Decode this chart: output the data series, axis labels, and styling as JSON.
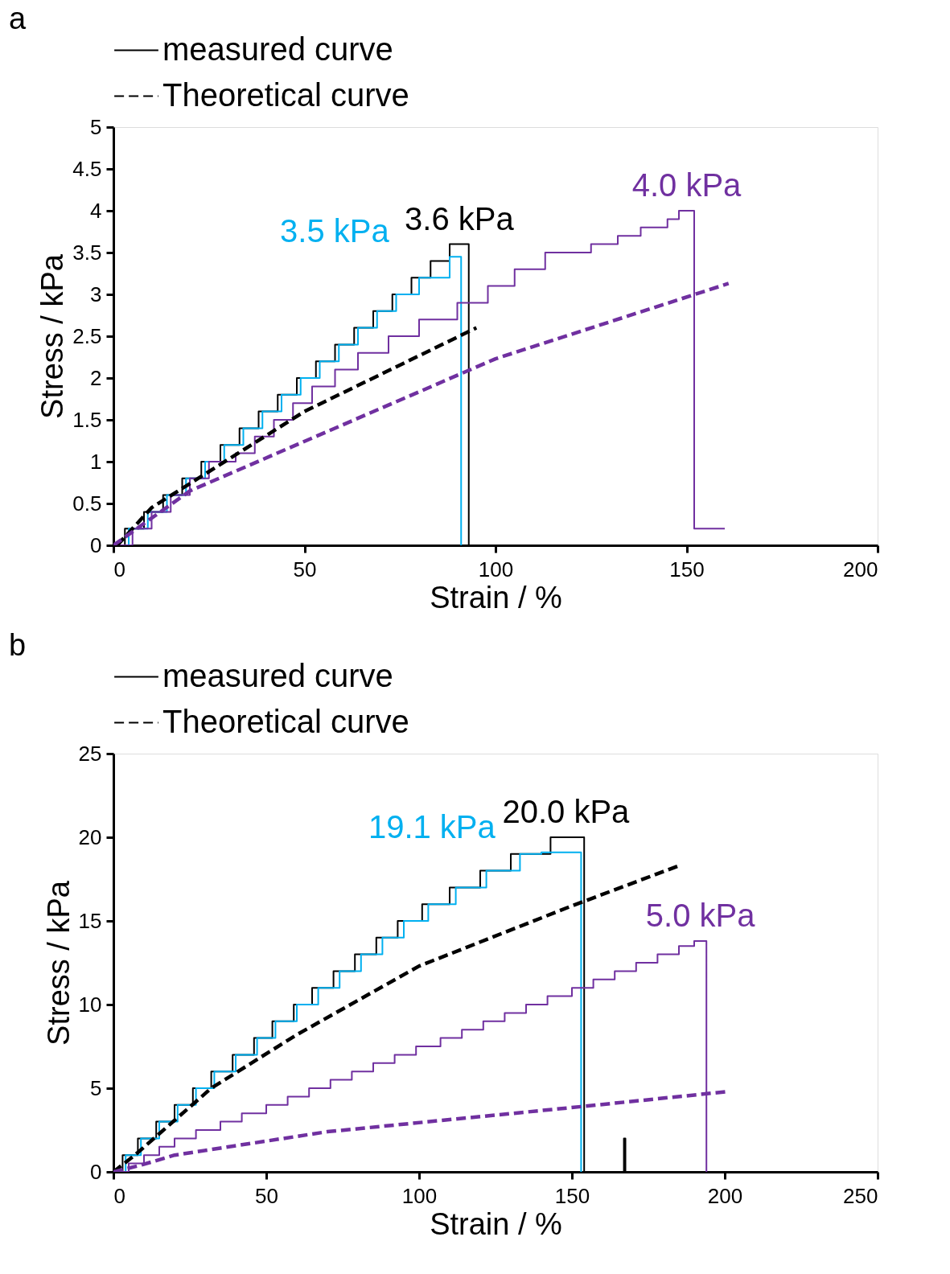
{
  "chart_data": [
    {
      "type": "line",
      "title": "a",
      "xlabel": "Strain / %",
      "ylabel": "Stress / kPa",
      "xlim": [
        0,
        200
      ],
      "xticks": [
        0,
        50,
        100,
        150,
        200
      ],
      "ylim": [
        0,
        5
      ],
      "yticks": [
        0,
        0.5,
        1,
        1.5,
        2,
        2.5,
        3,
        3.5,
        4,
        4.5,
        5
      ],
      "grid": false,
      "legend": "top",
      "marker": "none",
      "series": [
        {
          "name": "measured curve",
          "type": "step",
          "line_style": "solid",
          "color": "#000000",
          "x": [
            0,
            3,
            8,
            13,
            18,
            23,
            28,
            33,
            38,
            43,
            48,
            53,
            58,
            63,
            68,
            73,
            78,
            83,
            88,
            93
          ],
          "values": [
            0,
            0.2,
            0.4,
            0.6,
            0.8,
            1.0,
            1.2,
            1.4,
            1.6,
            1.8,
            2.0,
            2.2,
            2.4,
            2.6,
            2.8,
            3.0,
            3.2,
            3.4,
            3.6,
            0
          ]
        },
        {
          "type": "step",
          "line_style": "solid",
          "color": "#00b0f0",
          "x": [
            0,
            4,
            9,
            14,
            19,
            24,
            29,
            34,
            39,
            44,
            49,
            54,
            59,
            64,
            69,
            74,
            80,
            88,
            91
          ],
          "values": [
            0,
            0.2,
            0.4,
            0.6,
            0.8,
            1.0,
            1.2,
            1.4,
            1.6,
            1.8,
            2.0,
            2.2,
            2.4,
            2.6,
            2.8,
            3.0,
            3.2,
            3.45,
            0
          ]
        },
        {
          "type": "step",
          "line_style": "solid",
          "color": "#7030a0",
          "x": [
            0,
            5,
            10,
            15,
            20,
            25,
            32,
            37,
            42,
            47,
            52,
            58,
            64,
            72,
            80,
            90,
            98,
            105,
            113,
            125,
            132,
            138,
            145,
            148,
            152,
            160
          ],
          "values": [
            0,
            0.2,
            0.4,
            0.6,
            0.8,
            1.0,
            1.1,
            1.3,
            1.5,
            1.7,
            1.9,
            2.1,
            2.3,
            2.5,
            2.7,
            2.9,
            3.1,
            3.3,
            3.5,
            3.6,
            3.7,
            3.8,
            3.9,
            4.0,
            0.2,
            0.2
          ]
        },
        {
          "name": "Theoretical curve",
          "line_style": "dashed",
          "color": "#000000",
          "x": [
            1,
            10,
            50,
            95
          ],
          "values": [
            0,
            0.45,
            1.6,
            2.6
          ]
        },
        {
          "line_style": "dashed",
          "color": "#7030a0",
          "x": [
            0,
            20,
            100,
            161
          ],
          "values": [
            0,
            0.65,
            2.23,
            3.13
          ]
        }
      ],
      "annotations": [
        {
          "text": "3.6 kPa",
          "x": 90.5,
          "y": 3.6
        },
        {
          "text": "3.5 kPa",
          "x": 89,
          "y": 3.45
        },
        {
          "text": "4.0 kPa",
          "x": 150,
          "y": 4.0
        }
      ]
    },
    {
      "type": "line",
      "title": "b",
      "xlabel": "Strain / %",
      "ylabel": "Stress / kPa",
      "xlim": [
        0,
        250
      ],
      "xticks": [
        0,
        50,
        100,
        150,
        200,
        250
      ],
      "ylim": [
        0,
        25
      ],
      "yticks": [
        0,
        5,
        10,
        15,
        20,
        25
      ],
      "grid": false,
      "legend": "top",
      "marker": "none",
      "series": [
        {
          "name": "measured curve",
          "type": "step",
          "line_style": "solid",
          "color": "#000000",
          "x": [
            0,
            3,
            8,
            14,
            20,
            26,
            32,
            39,
            46,
            52,
            59,
            65,
            72,
            79,
            86,
            93,
            101,
            110,
            120,
            130,
            143,
            154,
            167,
            167.5,
            190
          ],
          "values": [
            0,
            1,
            2,
            3,
            4,
            5,
            6,
            7,
            8,
            9,
            10,
            11,
            12,
            13,
            14,
            15,
            16,
            17,
            18,
            19,
            20,
            0,
            2,
            0,
            0
          ]
        },
        {
          "type": "step",
          "line_style": "solid",
          "color": "#00b0f0",
          "x": [
            0,
            4,
            9,
            15,
            21,
            27,
            33,
            40,
            47,
            53,
            60,
            67,
            74,
            81,
            88,
            95,
            103,
            112,
            122,
            133,
            140,
            153
          ],
          "values": [
            0,
            1,
            2,
            3,
            4,
            5,
            6,
            7,
            8,
            9,
            10,
            11,
            12,
            13,
            14,
            15,
            16,
            17,
            18,
            19,
            19.1,
            0
          ]
        },
        {
          "type": "step",
          "line_style": "solid",
          "color": "#7030a0",
          "x": [
            0,
            5,
            10,
            15,
            20,
            27,
            35,
            42,
            50,
            57,
            64,
            71,
            78,
            85,
            92,
            99,
            107,
            114,
            121,
            128,
            135,
            142,
            150,
            157,
            164,
            171,
            178,
            185,
            190,
            194
          ],
          "values": [
            0,
            0.5,
            1,
            1.5,
            2,
            2.5,
            3,
            3.5,
            4,
            4.5,
            5,
            5.5,
            6,
            6.5,
            7,
            7.5,
            8,
            8.5,
            9,
            9.5,
            10,
            10.5,
            11,
            11.5,
            12,
            12.5,
            13,
            13.5,
            13.8,
            0
          ]
        },
        {
          "name": "Theoretical curve",
          "line_style": "dashed",
          "color": "#000000",
          "x": [
            0,
            7,
            32,
            60,
            100,
            150,
            185
          ],
          "values": [
            0,
            1,
            5,
            8.2,
            12.3,
            15.9,
            18.3
          ]
        },
        {
          "line_style": "dashed",
          "color": "#7030a0",
          "x": [
            0,
            9,
            20,
            70,
            153,
            201
          ],
          "values": [
            0,
            0.4,
            1.0,
            2.4,
            3.9,
            4.8
          ]
        }
      ],
      "annotations": [
        {
          "text": "20.0 kPa",
          "x": 148,
          "y": 20
        },
        {
          "text": "19.1 kPa",
          "x": 146,
          "y": 19.1
        },
        {
          "text": "5.0 kPa",
          "x": 192,
          "y": 13.8
        }
      ]
    }
  ]
}
